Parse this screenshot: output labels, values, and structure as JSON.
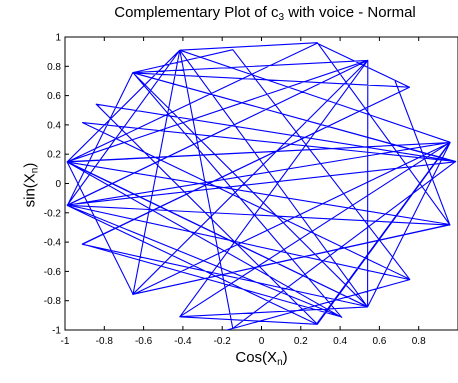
{
  "chart_data": {
    "type": "line",
    "title": {
      "main": "Complementary Plot of c",
      "sub": "3",
      "suffix": " with voice - Normal"
    },
    "xlabel": {
      "main": "Cos(X",
      "sub": "n",
      "suffix": ")"
    },
    "ylabel": {
      "main": "sin(X",
      "sub": "n",
      "suffix": ")"
    },
    "xlim": [
      -1,
      1
    ],
    "ylim": [
      -1,
      1
    ],
    "xticks": [
      -1,
      -0.8,
      -0.6,
      -0.4,
      -0.2,
      0,
      0.2,
      0.4,
      0.6,
      0.8
    ],
    "xtick_labels": [
      "-1",
      "-0.8",
      "-0.6",
      "-0.4",
      "-0.2",
      "0",
      "0.2",
      "0.4",
      "0.6",
      "0.8"
    ],
    "yticks": [
      1,
      0.8,
      0.6,
      0.4,
      0.2,
      0,
      -0.2,
      -0.4,
      -0.6,
      -0.8,
      -1
    ],
    "ytick_labels": [
      "1",
      "0.8",
      "0.6",
      "0.4",
      "0.2",
      "0",
      "-0.2",
      "-0.4",
      "-0.6",
      "-0.8",
      "-1"
    ],
    "grid": false,
    "series": [
      {
        "color": "#0000ff",
        "x": [
          0.68,
          0.959,
          -0.988,
          0.541,
          -0.416,
          0.284,
          0.96,
          -0.989,
          0.54,
          -0.655,
          -0.146,
          0.754,
          -0.911,
          0.988,
          -0.841,
          0.284,
          0.96,
          -0.989,
          0.54,
          -0.416,
          -0.654,
          0.959,
          0.284,
          -0.416,
          -0.988,
          0.541,
          -0.654,
          0.408,
          -0.988,
          0.959,
          -0.655,
          0.541,
          0.54,
          -0.416,
          0.96,
          -0.989,
          0.408,
          -0.912,
          0.753,
          0.283,
          -0.989,
          -0.653,
          0.96,
          0.54,
          -0.416,
          -0.146,
          0.754,
          -0.989,
          0.988,
          -0.655,
          -0.988,
          0.283,
          0.28,
          0.959,
          -0.416,
          -0.988,
          0.541,
          0.54,
          -0.911,
          0.753,
          -0.654,
          0.988,
          -0.146,
          -0.4
        ],
        "y": [
          0.7,
          -0.284,
          -0.149,
          0.84,
          -0.91,
          -0.961,
          0.279,
          0.149,
          -0.841,
          0.757,
          0.913,
          -0.654,
          0.416,
          0.151,
          0.541,
          -0.96,
          0.279,
          0.147,
          -0.842,
          0.91,
          -0.757,
          -0.282,
          0.961,
          0.91,
          -0.147,
          0.84,
          0.757,
          -0.913,
          0.146,
          -0.28,
          -0.756,
          0.84,
          -0.842,
          -0.909,
          0.281,
          -0.149,
          -0.911,
          -0.413,
          0.657,
          0.958,
          0.147,
          -0.758,
          0.279,
          -0.842,
          0.91,
          -0.99,
          -0.656,
          -0.146,
          0.148,
          0.757,
          -0.15,
          -0.962,
          -0.96,
          0.282,
          0.91,
          0.149,
          0.841,
          -0.84,
          -0.415,
          0.657,
          0.755,
          0.151,
          -0.989,
          -1.08
        ]
      }
    ]
  }
}
